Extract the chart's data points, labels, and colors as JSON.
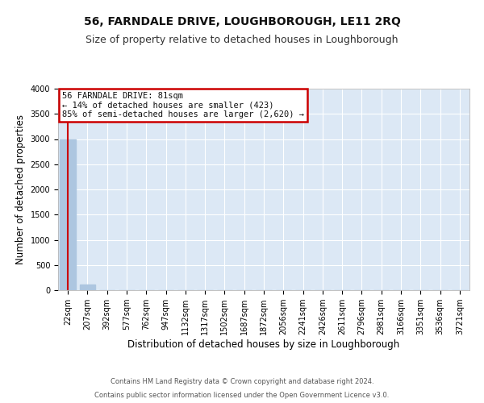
{
  "title": "56, FARNDALE DRIVE, LOUGHBOROUGH, LE11 2RQ",
  "subtitle": "Size of property relative to detached houses in Loughborough",
  "xlabel": "Distribution of detached houses by size in Loughborough",
  "ylabel": "Number of detached properties",
  "bar_color": "#adc6e0",
  "property_line_color": "#cc0000",
  "background_color": "#ffffff",
  "plot_bg_color": "#dce8f5",
  "grid_color": "#ffffff",
  "categories": [
    "22sqm",
    "207sqm",
    "392sqm",
    "577sqm",
    "762sqm",
    "947sqm",
    "1132sqm",
    "1317sqm",
    "1502sqm",
    "1687sqm",
    "1872sqm",
    "2056sqm",
    "2241sqm",
    "2426sqm",
    "2611sqm",
    "2796sqm",
    "2981sqm",
    "3166sqm",
    "3351sqm",
    "3536sqm",
    "3721sqm"
  ],
  "values": [
    2985,
    110,
    0,
    0,
    0,
    0,
    0,
    0,
    0,
    0,
    0,
    0,
    0,
    0,
    0,
    0,
    0,
    0,
    0,
    0,
    0
  ],
  "ylim": [
    0,
    4000
  ],
  "yticks": [
    0,
    500,
    1000,
    1500,
    2000,
    2500,
    3000,
    3500,
    4000
  ],
  "property_bin_index": 0,
  "annotation_title": "56 FARNDALE DRIVE: 81sqm",
  "annotation_line2": "← 14% of detached houses are smaller (423)",
  "annotation_line3": "85% of semi-detached houses are larger (2,620) →",
  "footer_line1": "Contains HM Land Registry data © Crown copyright and database right 2024.",
  "footer_line2": "Contains public sector information licensed under the Open Government Licence v3.0.",
  "title_fontsize": 10,
  "subtitle_fontsize": 9,
  "tick_fontsize": 7,
  "ylabel_fontsize": 8.5,
  "xlabel_fontsize": 8.5,
  "annotation_fontsize": 7.5,
  "footer_fontsize": 6
}
